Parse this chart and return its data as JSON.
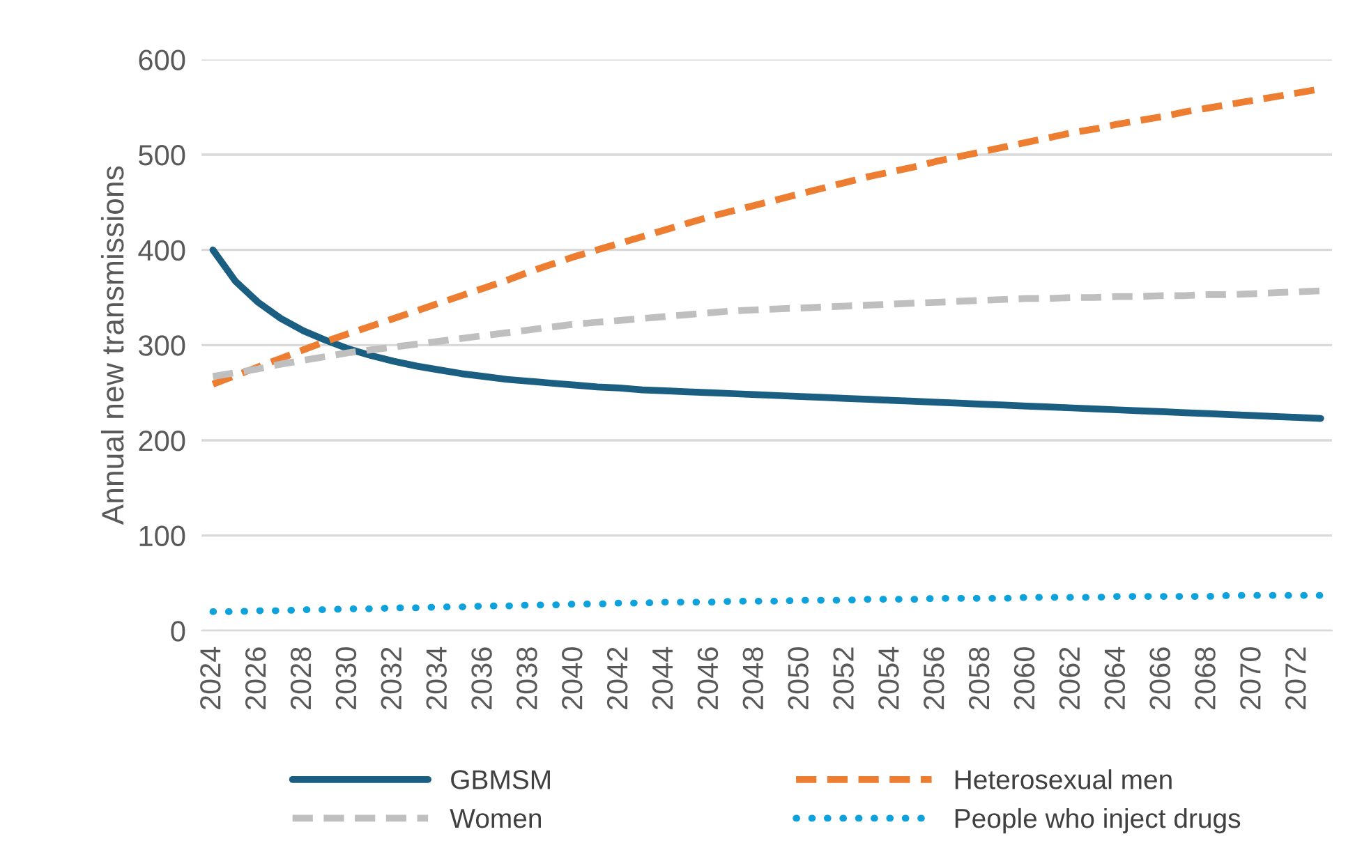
{
  "chart_data": {
    "type": "line",
    "ylabel": "Annual new transmissions",
    "categories": [
      "2024",
      null,
      "2026",
      null,
      "2028",
      null,
      "2030",
      null,
      "2032",
      null,
      "2034",
      null,
      "2036",
      null,
      "2038",
      null,
      "2040",
      null,
      "2042",
      null,
      "2044",
      null,
      "2046",
      null,
      "2048",
      null,
      "2050",
      null,
      "2052",
      null,
      "2054",
      null,
      "2056",
      null,
      "2058",
      null,
      "2060",
      null,
      "2062",
      null,
      "2064",
      null,
      "2066",
      null,
      "2068",
      null,
      "2070",
      null,
      "2072",
      null
    ],
    "ylim": [
      0,
      600
    ],
    "yticks": [
      0,
      100,
      200,
      300,
      400,
      500,
      600
    ],
    "grid": "y",
    "legend": "bottom",
    "series": [
      {
        "name": "GBMSM",
        "color": "#1a5e82",
        "line_style": "solid",
        "values": [
          400,
          367,
          345,
          328,
          315,
          305,
          296,
          289,
          283,
          278,
          274,
          270,
          267,
          264,
          262,
          260,
          258,
          256,
          255,
          253,
          252,
          251,
          250,
          249,
          248,
          247,
          246,
          245,
          244,
          243,
          242,
          241,
          240,
          239,
          238,
          237,
          236,
          235,
          234,
          233,
          232,
          231,
          230,
          229,
          228,
          227,
          226,
          225,
          224,
          223
        ]
      },
      {
        "name": "Heterosexual men",
        "color": "#ed7d31",
        "line_style": "dashed",
        "values": [
          259,
          268,
          277,
          286,
          295,
          304,
          312,
          320,
          328,
          336,
          344,
          352,
          360,
          368,
          377,
          385,
          393,
          400,
          407,
          414,
          421,
          428,
          435,
          441,
          447,
          453,
          459,
          465,
          471,
          477,
          482,
          487,
          493,
          498,
          503,
          508,
          513,
          518,
          523,
          527,
          532,
          536,
          540,
          545,
          549,
          553,
          557,
          561,
          565,
          569
        ]
      },
      {
        "name": "Women",
        "color": "#bfbfbf",
        "line_style": "dashed",
        "values": [
          267,
          271,
          275,
          280,
          284,
          288,
          292,
          295,
          298,
          301,
          304,
          307,
          310,
          313,
          316,
          319,
          322,
          324,
          326,
          328,
          330,
          332,
          334,
          336,
          337,
          338,
          339,
          340,
          341,
          342,
          343,
          344,
          345,
          346,
          347,
          348,
          349,
          349,
          350,
          350,
          351,
          351,
          352,
          352,
          353,
          353,
          354,
          355,
          356,
          357
        ]
      },
      {
        "name": "People who inject drugs",
        "color": "#0ea2dc",
        "line_style": "dotted",
        "values": [
          20,
          20,
          21,
          21,
          22,
          22,
          23,
          23,
          24,
          24,
          25,
          25,
          26,
          26,
          27,
          27,
          28,
          28,
          29,
          29,
          30,
          30,
          30,
          31,
          31,
          31,
          32,
          32,
          32,
          33,
          33,
          33,
          34,
          34,
          34,
          34,
          35,
          35,
          35,
          35,
          36,
          36,
          36,
          36,
          36,
          37,
          37,
          37,
          37,
          37
        ]
      }
    ]
  }
}
